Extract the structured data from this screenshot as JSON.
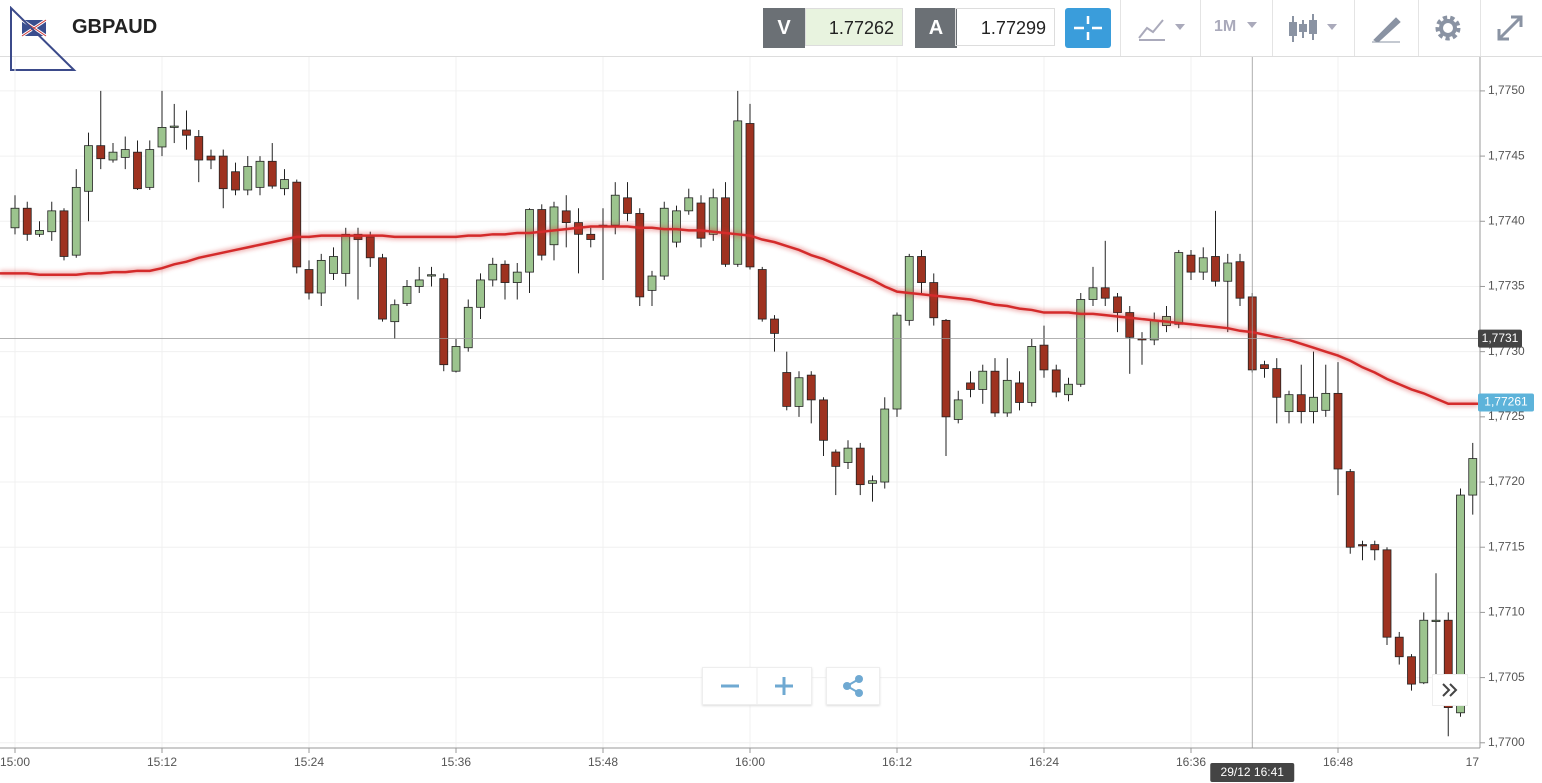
{
  "toolbar": {
    "symbol": "GBPAUD",
    "bid_label": "V",
    "bid": 1.77262,
    "ask_label": "A",
    "ask": 1.77299,
    "timeframe": "1M"
  },
  "chart_data": {
    "type": "candlestick",
    "categories": [
      "15:00",
      null,
      null,
      null,
      null,
      null,
      null,
      null,
      null,
      null,
      null,
      null,
      "15:12",
      null,
      null,
      null,
      null,
      null,
      null,
      null,
      null,
      null,
      null,
      null,
      "15:24",
      null,
      null,
      null,
      null,
      null,
      null,
      null,
      null,
      null,
      null,
      null,
      "15:36",
      null,
      null,
      null,
      null,
      null,
      null,
      null,
      null,
      null,
      null,
      null,
      "15:48",
      null,
      null,
      null,
      null,
      null,
      null,
      null,
      null,
      null,
      null,
      null,
      "16:00",
      null,
      null,
      null,
      null,
      null,
      null,
      null,
      null,
      null,
      null,
      null,
      "16:12",
      null,
      null,
      null,
      null,
      null,
      null,
      null,
      null,
      null,
      null,
      null,
      "16:24",
      null,
      null,
      null,
      null,
      null,
      null,
      null,
      null,
      null,
      null,
      null,
      "16:36",
      null,
      null,
      null,
      null,
      null,
      null,
      null,
      null,
      null,
      null,
      null,
      "16:48",
      null,
      null,
      null,
      null,
      null,
      null,
      null,
      null,
      null,
      null,
      null
    ],
    "next_tick_label": "17",
    "open": [
      1.77395,
      1.7741,
      1.7739,
      1.77392,
      1.77408,
      1.77374,
      1.77423,
      1.77458,
      1.77447,
      1.77449,
      1.77453,
      1.77426,
      1.77457,
      1.77472,
      1.7747,
      1.77465,
      1.7745,
      1.7745,
      1.77438,
      1.77424,
      1.77426,
      1.77446,
      1.77425,
      1.7743,
      1.77363,
      1.77345,
      1.7736,
      1.7736,
      1.7739,
      1.77388,
      1.77372,
      1.77323,
      1.77337,
      1.7735,
      1.77358,
      1.77356,
      1.77285,
      1.77303,
      1.77334,
      1.77355,
      1.77367,
      1.77353,
      1.77361,
      1.77409,
      1.77382,
      1.77408,
      1.77399,
      1.7739,
      1.77396,
      1.77397,
      1.77418,
      1.77406,
      1.77347,
      1.77358,
      1.77384,
      1.77408,
      1.77414,
      1.7739,
      1.77418,
      1.77367,
      1.77475,
      1.77363,
      1.77325,
      1.77284,
      1.77258,
      1.77282,
      1.77263,
      1.77223,
      1.77215,
      1.77226,
      1.77199,
      1.772,
      1.77256,
      1.77324,
      1.77373,
      1.77353,
      1.77324,
      1.77248,
      1.77276,
      1.77271,
      1.77285,
      1.77253,
      1.77276,
      1.77261,
      1.77305,
      1.77286,
      1.77267,
      1.77275,
      1.7734,
      1.77349,
      1.77342,
      1.7733,
      1.7731,
      1.77309,
      1.7732,
      1.77321,
      1.77374,
      1.77361,
      1.77373,
      1.77354,
      1.77369,
      1.77342,
      1.7729,
      1.77287,
      1.77254,
      1.77267,
      1.77254,
      1.77255,
      1.77268,
      1.77208,
      1.77152,
      1.77152,
      1.77148,
      1.77081,
      1.77066,
      1.77046,
      1.77093,
      1.77094,
      1.77023,
      1.7719
    ],
    "high": [
      1.7742,
      1.77415,
      1.774,
      1.77415,
      1.7741,
      1.7744,
      1.77468,
      1.775,
      1.7746,
      1.77465,
      1.77462,
      1.77462,
      1.775,
      1.7749,
      1.77485,
      1.7747,
      1.77455,
      1.77455,
      1.77445,
      1.7745,
      1.7745,
      1.7746,
      1.7744,
      1.77432,
      1.7737,
      1.77375,
      1.7738,
      1.77395,
      1.77395,
      1.77392,
      1.77375,
      1.7734,
      1.77355,
      1.77365,
      1.77365,
      1.7736,
      1.7731,
      1.7734,
      1.7736,
      1.77372,
      1.7737,
      1.77368,
      1.7741,
      1.77413,
      1.77415,
      1.7742,
      1.7741,
      1.77395,
      1.7741,
      1.7743,
      1.7743,
      1.7741,
      1.77362,
      1.77415,
      1.77412,
      1.77425,
      1.7742,
      1.77425,
      1.7743,
      1.775,
      1.7749,
      1.77365,
      1.77328,
      1.773,
      1.77285,
      1.77285,
      1.77265,
      1.77225,
      1.77232,
      1.7723,
      1.77205,
      1.77265,
      1.7733,
      1.77375,
      1.77378,
      1.7736,
      1.77325,
      1.7727,
      1.77285,
      1.7729,
      1.77295,
      1.77295,
      1.77285,
      1.7731,
      1.7732,
      1.7729,
      1.7728,
      1.77345,
      1.77365,
      1.77385,
      1.77345,
      1.77335,
      1.77315,
      1.7733,
      1.77335,
      1.77378,
      1.77378,
      1.7738,
      1.77408,
      1.77375,
      1.77375,
      1.77345,
      1.77293,
      1.77295,
      1.7727,
      1.7729,
      1.773,
      1.7729,
      1.77292,
      1.7721,
      1.77155,
      1.77155,
      1.7715,
      1.77085,
      1.77068,
      1.771,
      1.7713,
      1.771,
      1.77195,
      1.7723
    ],
    "low": [
      1.7739,
      1.77385,
      1.77388,
      1.77385,
      1.7737,
      1.77372,
      1.774,
      1.7744,
      1.77445,
      1.7744,
      1.77424,
      1.77424,
      1.7745,
      1.7746,
      1.77455,
      1.7743,
      1.7744,
      1.7741,
      1.7742,
      1.7742,
      1.7742,
      1.77425,
      1.7742,
      1.7736,
      1.7734,
      1.77335,
      1.77355,
      1.7735,
      1.7734,
      1.77365,
      1.77323,
      1.7731,
      1.77335,
      1.77345,
      1.7735,
      1.77285,
      1.77284,
      1.773,
      1.77325,
      1.7735,
      1.7734,
      1.7734,
      1.77345,
      1.7737,
      1.7737,
      1.7738,
      1.7736,
      1.7738,
      1.77355,
      1.7739,
      1.774,
      1.77335,
      1.77335,
      1.77355,
      1.7738,
      1.77405,
      1.7738,
      1.77385,
      1.77365,
      1.77365,
      1.77363,
      1.77323,
      1.773,
      1.77255,
      1.7725,
      1.77245,
      1.7722,
      1.7719,
      1.7721,
      1.7719,
      1.77185,
      1.77195,
      1.7725,
      1.7732,
      1.77345,
      1.7732,
      1.7722,
      1.77245,
      1.77265,
      1.7726,
      1.7725,
      1.7725,
      1.77255,
      1.77258,
      1.7728,
      1.77265,
      1.77262,
      1.77273,
      1.77335,
      1.77335,
      1.77315,
      1.77283,
      1.7729,
      1.77305,
      1.77315,
      1.77318,
      1.77355,
      1.77355,
      1.7735,
      1.77315,
      1.77335,
      1.77284,
      1.7728,
      1.77245,
      1.77245,
      1.77245,
      1.77245,
      1.7725,
      1.7719,
      1.77145,
      1.7714,
      1.7714,
      1.77075,
      1.7706,
      1.7704,
      1.77045,
      1.7705,
      1.77005,
      1.7702,
      1.77175
    ],
    "close": [
      1.7741,
      1.7739,
      1.77393,
      1.77408,
      1.77373,
      1.77426,
      1.77458,
      1.77448,
      1.77453,
      1.77455,
      1.77425,
      1.77455,
      1.77472,
      1.77473,
      1.77466,
      1.77447,
      1.77447,
      1.77425,
      1.77424,
      1.77442,
      1.77446,
      1.77427,
      1.77432,
      1.77365,
      1.77345,
      1.7737,
      1.77373,
      1.7739,
      1.77386,
      1.77372,
      1.77325,
      1.77336,
      1.7735,
      1.77355,
      1.77359,
      1.7729,
      1.77304,
      1.77334,
      1.77355,
      1.77367,
      1.77353,
      1.77361,
      1.77409,
      1.77374,
      1.77411,
      1.77399,
      1.7739,
      1.77386,
      1.77397,
      1.7742,
      1.77406,
      1.77342,
      1.77358,
      1.7741,
      1.77408,
      1.77418,
      1.77387,
      1.77418,
      1.77367,
      1.77477,
      1.77365,
      1.77325,
      1.77314,
      1.77258,
      1.7728,
      1.77263,
      1.77232,
      1.77212,
      1.77226,
      1.77198,
      1.77201,
      1.77256,
      1.77328,
      1.77373,
      1.77353,
      1.77326,
      1.7725,
      1.77263,
      1.77271,
      1.77285,
      1.77253,
      1.77278,
      1.77261,
      1.77304,
      1.77286,
      1.77269,
      1.77275,
      1.7734,
      1.77349,
      1.77341,
      1.7733,
      1.77311,
      1.77309,
      1.77324,
      1.77327,
      1.77376,
      1.77361,
      1.77372,
      1.77354,
      1.77368,
      1.77341,
      1.77286,
      1.77287,
      1.77265,
      1.77267,
      1.77254,
      1.77265,
      1.77268,
      1.7721,
      1.7715,
      1.77151,
      1.77148,
      1.77081,
      1.77066,
      1.77045,
      1.77094,
      1.77094,
      1.77027,
      1.7719,
      1.77218
    ],
    "up_color": "#9cc48e",
    "down_color": "#9e3220",
    "moving_average": {
      "color": "#d42b2b",
      "values": [
        1.7736,
        1.7736,
        1.77359,
        1.77359,
        1.77359,
        1.77359,
        1.7736,
        1.7736,
        1.77361,
        1.77361,
        1.77362,
        1.77362,
        1.77364,
        1.77367,
        1.77369,
        1.77372,
        1.77374,
        1.77376,
        1.77378,
        1.7738,
        1.77382,
        1.77384,
        1.77386,
        1.77388,
        1.77388,
        1.77389,
        1.77389,
        1.77389,
        1.77389,
        1.77389,
        1.77389,
        1.77388,
        1.77388,
        1.77388,
        1.77388,
        1.77388,
        1.77388,
        1.77389,
        1.77389,
        1.7739,
        1.7739,
        1.77391,
        1.77391,
        1.77392,
        1.77393,
        1.77394,
        1.77395,
        1.77396,
        1.77396,
        1.77396,
        1.77396,
        1.77395,
        1.77395,
        1.77394,
        1.77394,
        1.77393,
        1.77393,
        1.77392,
        1.77391,
        1.7739,
        1.77389,
        1.77386,
        1.77384,
        1.77381,
        1.77378,
        1.77374,
        1.77371,
        1.77367,
        1.77363,
        1.77359,
        1.77355,
        1.7735,
        1.77346,
        1.77345,
        1.77344,
        1.77343,
        1.77342,
        1.77341,
        1.7734,
        1.77338,
        1.77336,
        1.77335,
        1.77333,
        1.77332,
        1.7733,
        1.7733,
        1.7733,
        1.77329,
        1.77329,
        1.77328,
        1.77327,
        1.77326,
        1.77325,
        1.77324,
        1.77323,
        1.77322,
        1.77321,
        1.7732,
        1.77319,
        1.77318,
        1.77316,
        1.77315,
        1.77313,
        1.77311,
        1.77309,
        1.77306,
        1.77303,
        1.773,
        1.77297,
        1.77293,
        1.77288,
        1.77284,
        1.77279,
        1.77275,
        1.77271,
        1.77268,
        1.77264,
        1.7726,
        1.7726,
        1.7726
      ]
    }
  },
  "ylim": [
    1.76996,
    1.77526
  ],
  "yticks": [
    {
      "value": 1.77,
      "label": "1,7700"
    },
    {
      "value": 1.7705,
      "label": "1,7705"
    },
    {
      "value": 1.771,
      "label": "1,7710"
    },
    {
      "value": 1.7715,
      "label": "1,7715"
    },
    {
      "value": 1.772,
      "label": "1,7720"
    },
    {
      "value": 1.7725,
      "label": "1,7725"
    },
    {
      "value": 1.773,
      "label": "1,7730"
    },
    {
      "value": 1.7735,
      "label": "1,7735"
    },
    {
      "value": 1.774,
      "label": "1,7740"
    },
    {
      "value": 1.7745,
      "label": "1,7745"
    },
    {
      "value": 1.775,
      "label": "1,7750"
    }
  ],
  "grid": true,
  "crosshair": {
    "y": {
      "value": 1.7731,
      "label": "1,7731"
    },
    "x_label": "29/12 16:41",
    "color": "#999999"
  },
  "last_price": {
    "value": 1.77261,
    "label": "1,77261",
    "color": "#5db3da"
  }
}
